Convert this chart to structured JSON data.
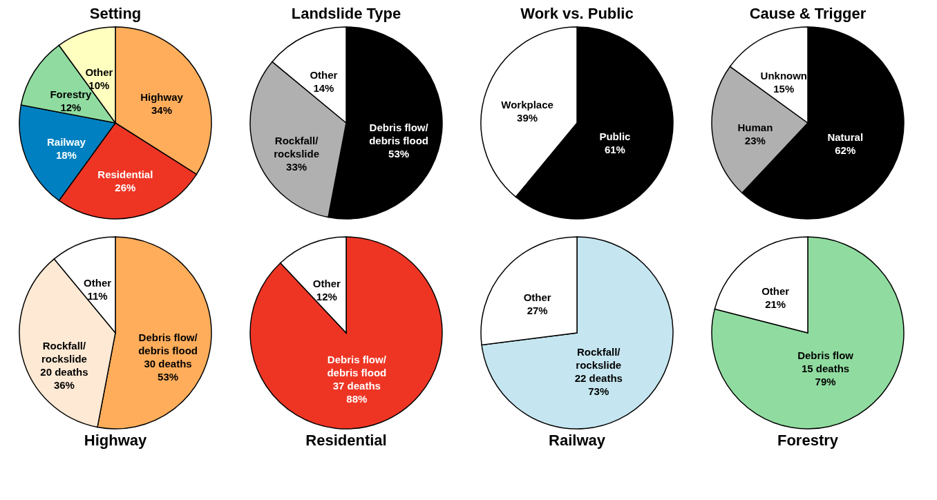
{
  "chart_data": [
    {
      "type": "pie",
      "title": "Setting",
      "categories": [
        "Highway",
        "Residential",
        "Railway",
        "Forestry",
        "Other"
      ],
      "values": [
        34,
        26,
        18,
        12,
        10
      ],
      "value_labels": [
        "34%",
        "26%",
        "18%",
        "12%",
        "10%"
      ],
      "colors": [
        "#ffad5b",
        "#ee3524",
        "#0080c0",
        "#90dca0",
        "#ffffc0"
      ]
    },
    {
      "type": "pie",
      "title": "Landslide Type",
      "categories": [
        "Debris flow/\ndebris flood",
        "Rockfall/\nrockslide",
        "Other"
      ],
      "values": [
        53,
        33,
        14
      ],
      "value_labels": [
        "53%",
        "33%",
        "14%"
      ],
      "colors": [
        "#000000",
        "#b0b0b0",
        "#ffffff"
      ]
    },
    {
      "type": "pie",
      "title": "Work vs. Public",
      "categories": [
        "Public",
        "Workplace"
      ],
      "values": [
        61,
        39
      ],
      "value_labels": [
        "61%",
        "39%"
      ],
      "colors": [
        "#000000",
        "#ffffff"
      ]
    },
    {
      "type": "pie",
      "title": "Cause & Trigger",
      "categories": [
        "Natural",
        "Human",
        "Unknown"
      ],
      "values": [
        62,
        23,
        15
      ],
      "value_labels": [
        "62%",
        "23%",
        "15%"
      ],
      "colors": [
        "#000000",
        "#b0b0b0",
        "#ffffff"
      ]
    },
    {
      "type": "pie",
      "title": "Highway",
      "categories": [
        "Debris flow/\ndebris flood\n30 deaths",
        "Rockfall/\nrockslide\n20 deaths",
        "Other"
      ],
      "values": [
        53,
        36,
        11
      ],
      "value_labels": [
        "53%",
        "36%",
        "11%"
      ],
      "colors": [
        "#ffad5b",
        "#fde9d4",
        "#ffffff"
      ]
    },
    {
      "type": "pie",
      "title": "Residential",
      "categories": [
        "Debris flow/\ndebris flood\n37 deaths",
        "Other"
      ],
      "values": [
        88,
        12
      ],
      "value_labels": [
        "88%",
        "12%"
      ],
      "colors": [
        "#ee3524",
        "#ffffff"
      ]
    },
    {
      "type": "pie",
      "title": "Railway",
      "categories": [
        "Rockfall/\nrockslide\n22 deaths",
        "Other"
      ],
      "values": [
        73,
        27
      ],
      "value_labels": [
        "73%",
        "27%"
      ],
      "colors": [
        "#c5e6f0",
        "#ffffff"
      ]
    },
    {
      "type": "pie",
      "title": "Forestry",
      "categories": [
        "Debris flow\n15 deaths",
        "Other"
      ],
      "values": [
        79,
        21
      ],
      "value_labels": [
        "79%",
        "21%"
      ],
      "colors": [
        "#90dca0",
        "#ffffff"
      ]
    }
  ]
}
